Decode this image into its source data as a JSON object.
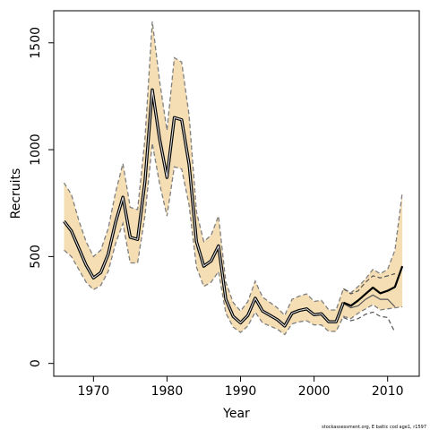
{
  "chart_data": {
    "type": "line",
    "title": "",
    "xlabel": "Year",
    "ylabel": "Recruits",
    "credit": "stockassessment.org, E baltic cod age1, r1597",
    "xlim": [
      1964.6,
      2014.3
    ],
    "ylim": [
      -60,
      1650
    ],
    "x_ticks": [
      1970,
      1980,
      1990,
      2000,
      2010
    ],
    "y_ticks": [
      0,
      500,
      1000,
      1500
    ],
    "grid": false,
    "legend": "none",
    "colors": {
      "band": "#f5deb3",
      "estimate": "#000000",
      "estimate_inner": "#d8d8d8",
      "bounds": "#7f7f7f",
      "retro": "#555555"
    },
    "series": [
      {
        "x": [
          1966,
          1967,
          1968,
          1969,
          1970,
          1971,
          1972,
          1973,
          1974,
          1975,
          1976,
          1977,
          1978,
          1979,
          1980,
          1981,
          1982,
          1983,
          1984,
          1985,
          1986,
          1987,
          1988,
          1989,
          1990,
          1991,
          1992,
          1993,
          1994,
          1995,
          1996,
          1997,
          1998,
          1999,
          2000,
          2001,
          2002,
          2003,
          2004,
          2005,
          2006,
          2007,
          2008,
          2009,
          2010,
          2011,
          2012
        ],
        "estimate": [
          665,
          620,
          540,
          460,
          400,
          425,
          510,
          660,
          778,
          590,
          580,
          850,
          1280,
          1050,
          870,
          1150,
          1140,
          930,
          570,
          455,
          480,
          550,
          300,
          220,
          190,
          225,
          305,
          245,
          225,
          205,
          175,
          235,
          248,
          255,
          228,
          232,
          195,
          195,
          285,
          270,
          295,
          325,
          355,
          328,
          340,
          358,
          455
        ],
        "lower": [
          530,
          500,
          440,
          380,
          345,
          365,
          430,
          560,
          655,
          470,
          470,
          690,
          1030,
          840,
          690,
          920,
          910,
          740,
          450,
          360,
          380,
          430,
          235,
          170,
          145,
          175,
          240,
          190,
          175,
          160,
          135,
          185,
          195,
          200,
          180,
          180,
          150,
          150,
          220,
          210,
          235,
          255,
          275,
          250,
          255,
          260,
          265
        ],
        "upper": [
          845,
          790,
          670,
          570,
          500,
          530,
          630,
          800,
          935,
          730,
          720,
          1050,
          1600,
          1320,
          1090,
          1430,
          1410,
          1160,
          710,
          570,
          600,
          690,
          380,
          285,
          245,
          290,
          385,
          310,
          285,
          260,
          225,
          300,
          315,
          325,
          290,
          295,
          250,
          250,
          350,
          330,
          360,
          395,
          440,
          420,
          440,
          530,
          800
        ]
      }
    ],
    "retrospective": [
      {
        "x": [
          2004,
          2005,
          2006,
          2007,
          2008,
          2009,
          2010,
          2011
        ],
        "estimate": [
          280,
          260,
          270,
          300,
          320,
          300,
          300,
          265
        ],
        "lower": [
          215,
          200,
          210,
          230,
          240,
          220,
          215,
          145
        ],
        "upper": [
          350,
          325,
          340,
          380,
          410,
          400,
          410,
          420
        ]
      }
    ]
  }
}
